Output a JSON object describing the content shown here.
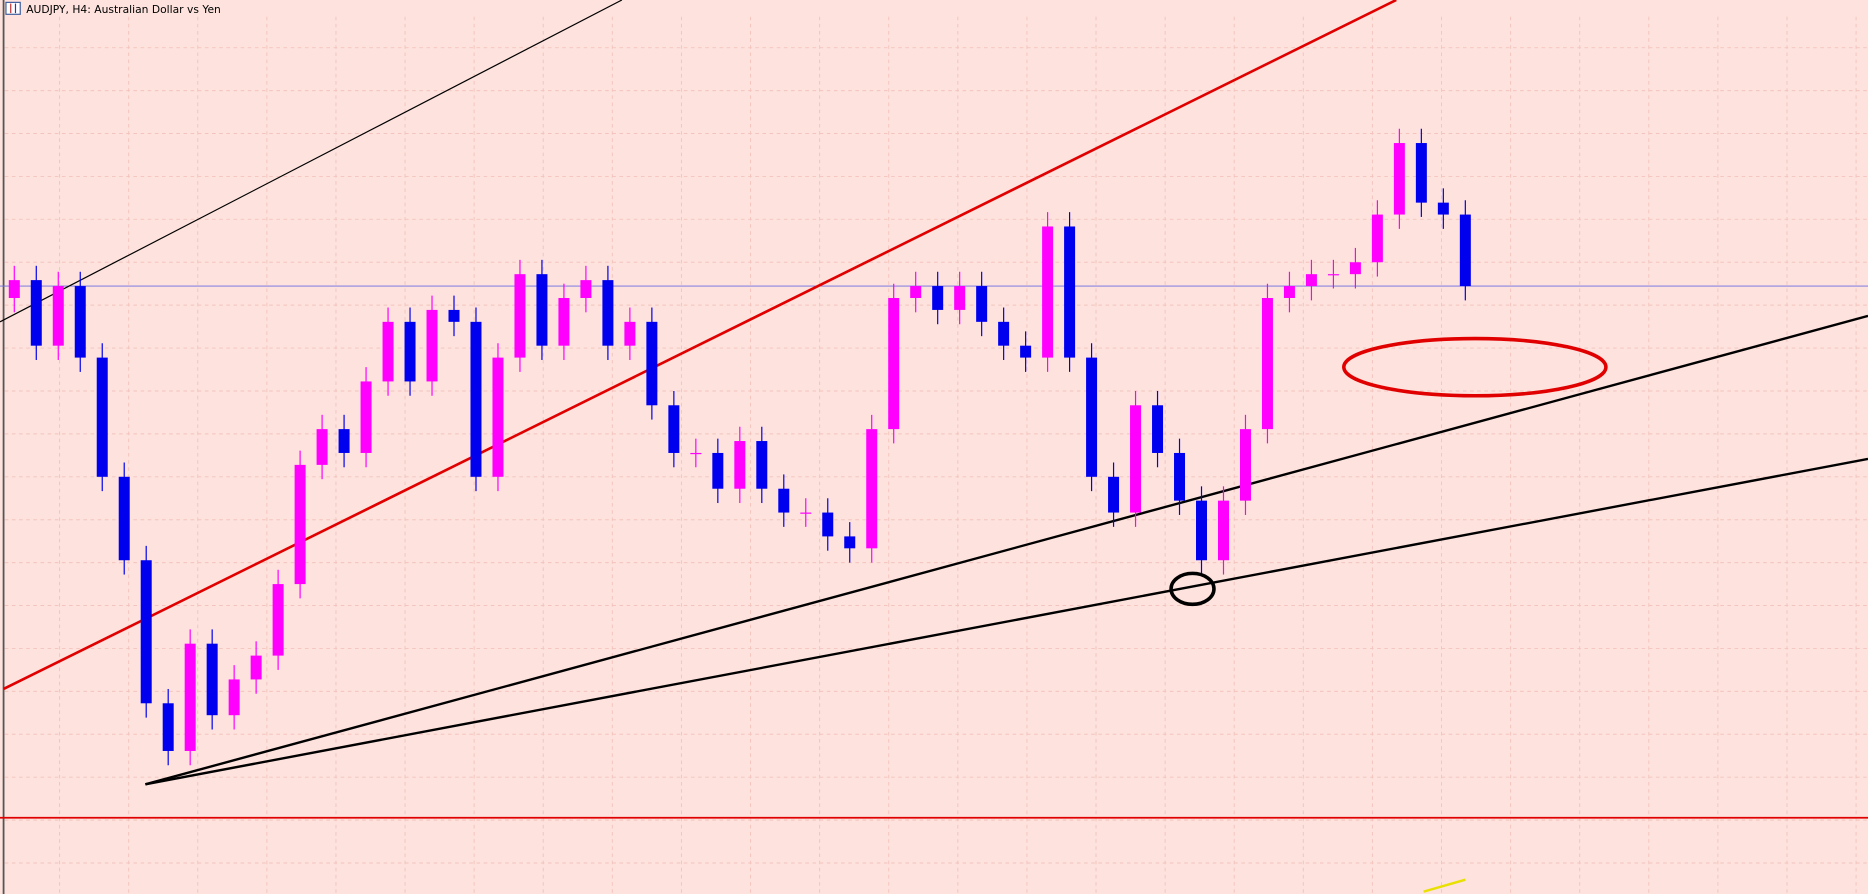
{
  "chart_data": {
    "type": "candlestick",
    "title": "AUDJPY, H4:  Australian Dollar vs Yen",
    "up_color": "#ff00ff",
    "down_color": "#0000ee",
    "ylim": [
      0,
      750
    ],
    "open": [
      500,
      515,
      460,
      510,
      450,
      350,
      280,
      160,
      120,
      210,
      150,
      180,
      200,
      260,
      360,
      390,
      370,
      430,
      480,
      430,
      490,
      480,
      350,
      450,
      520,
      460,
      500,
      515,
      460,
      480,
      410,
      370,
      370,
      340,
      380,
      340,
      320,
      320,
      300,
      290,
      390,
      500,
      510,
      490,
      510,
      480,
      460,
      450,
      560,
      450,
      350,
      320,
      410,
      370,
      330,
      280,
      330,
      390,
      500,
      510,
      520,
      520,
      530,
      570,
      630,
      580,
      570
    ],
    "high": [
      527,
      527,
      522,
      522,
      462,
      362,
      292,
      172,
      222,
      222,
      192,
      212,
      272,
      372,
      402,
      402,
      442,
      492,
      492,
      502,
      502,
      492,
      462,
      532,
      532,
      512,
      527,
      527,
      492,
      492,
      422,
      382,
      382,
      392,
      392,
      352,
      332,
      332,
      312,
      402,
      512,
      522,
      522,
      522,
      522,
      492,
      472,
      572,
      572,
      462,
      362,
      422,
      422,
      382,
      342,
      342,
      402,
      512,
      522,
      532,
      532,
      542,
      582,
      642,
      642,
      592,
      582
    ],
    "low": [
      488,
      448,
      448,
      438,
      338,
      268,
      148,
      108,
      108,
      138,
      138,
      168,
      188,
      248,
      348,
      358,
      358,
      418,
      418,
      418,
      468,
      338,
      338,
      438,
      448,
      448,
      488,
      448,
      448,
      398,
      358,
      358,
      328,
      328,
      328,
      308,
      308,
      288,
      278,
      278,
      378,
      488,
      478,
      478,
      468,
      448,
      438,
      438,
      438,
      338,
      308,
      308,
      358,
      318,
      268,
      268,
      318,
      378,
      488,
      498,
      508,
      508,
      518,
      558,
      568,
      558,
      498
    ],
    "close": [
      515,
      460,
      510,
      450,
      350,
      280,
      160,
      120,
      210,
      150,
      180,
      200,
      260,
      360,
      390,
      370,
      430,
      480,
      430,
      490,
      480,
      350,
      450,
      520,
      460,
      500,
      515,
      460,
      480,
      410,
      370,
      370,
      340,
      380,
      340,
      320,
      320,
      300,
      290,
      390,
      500,
      510,
      490,
      510,
      480,
      460,
      450,
      560,
      450,
      350,
      320,
      410,
      370,
      330,
      280,
      330,
      390,
      500,
      510,
      520,
      520,
      530,
      570,
      630,
      580,
      570,
      510
    ]
  }
}
